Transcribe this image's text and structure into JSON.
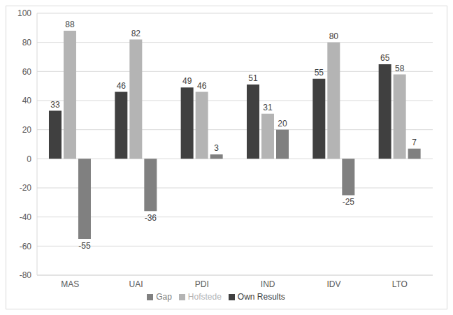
{
  "chart_data": {
    "type": "bar",
    "categories": [
      "MAS",
      "UAI",
      "PDI",
      "IND",
      "IDV",
      "LTO"
    ],
    "series": [
      {
        "name": "Own Results",
        "color": "#404040",
        "values": [
          33,
          46,
          49,
          51,
          55,
          65
        ]
      },
      {
        "name": "Hofstede",
        "color": "#b4b4b4",
        "values": [
          88,
          82,
          46,
          31,
          80,
          58
        ]
      },
      {
        "name": "Gap",
        "color": "#808080",
        "values": [
          -55,
          -36,
          3,
          20,
          -25,
          7
        ]
      }
    ],
    "ylim": [
      -80,
      100
    ],
    "yticks": [
      -80,
      -60,
      -40,
      -20,
      0,
      20,
      40,
      60,
      80,
      100
    ],
    "grid": true,
    "legend": "bottom",
    "data_labels": true
  }
}
